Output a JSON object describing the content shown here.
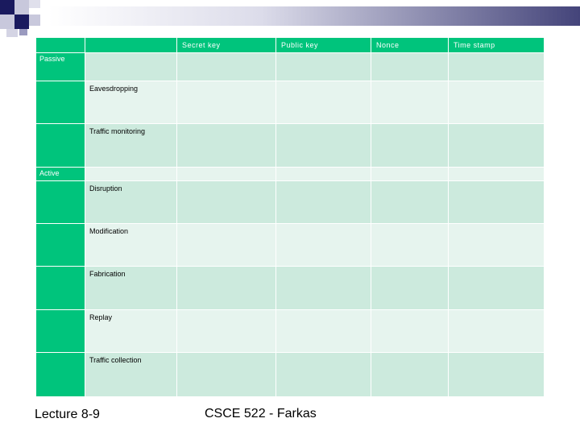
{
  "table": {
    "headers": [
      "",
      "",
      "Secret key",
      "Public key",
      "Nonce",
      "Time stamp"
    ],
    "categories": {
      "passive": "Passive",
      "active": "Active"
    },
    "rows": [
      "Eavesdropping",
      "Traffic monitoring",
      "Disruption",
      "Modification",
      "Fabrication",
      "Replay",
      "Traffic collection"
    ]
  },
  "footer": {
    "left": "Lecture 8-9",
    "center": "CSCE 522 - Farkas"
  },
  "colors": {
    "accent": "#00c47c",
    "row_a": "#cceadd",
    "row_b": "#e6f4ee",
    "header_dark": "#1a1a5e"
  }
}
